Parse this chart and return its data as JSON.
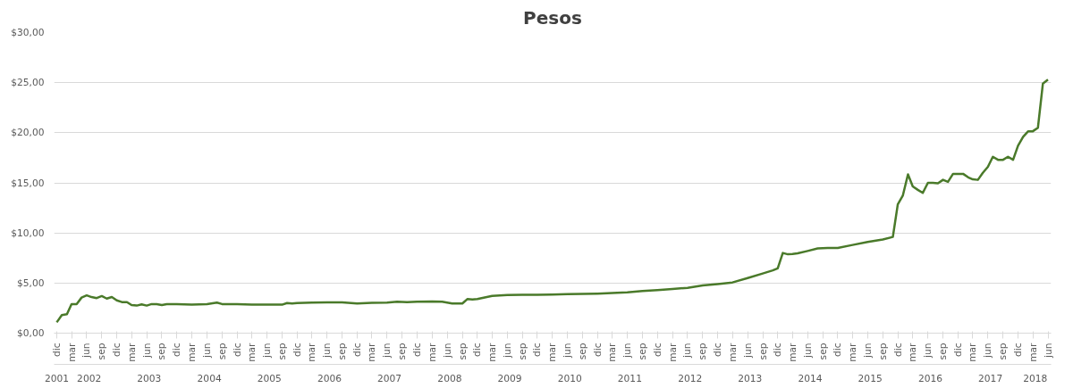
{
  "chart_data": {
    "type": "line",
    "title": "Pesos",
    "x": [
      "2001-12",
      "2002-01",
      "2002-02",
      "2002-03",
      "2002-04",
      "2002-05",
      "2002-06",
      "2002-07",
      "2002-08",
      "2002-09",
      "2002-10",
      "2002-11",
      "2002-12",
      "2003-01",
      "2003-02",
      "2003-03",
      "2003-04",
      "2003-05",
      "2003-06",
      "2003-07",
      "2003-08",
      "2003-09",
      "2003-10",
      "2003-12",
      "2004-03",
      "2004-06",
      "2004-08",
      "2004-09",
      "2004-12",
      "2005-03",
      "2005-06",
      "2005-09",
      "2005-10",
      "2005-11",
      "2005-12",
      "2006-03",
      "2006-06",
      "2006-09",
      "2006-12",
      "2007-03",
      "2007-06",
      "2007-08",
      "2007-10",
      "2007-12",
      "2008-03",
      "2008-05",
      "2008-07",
      "2008-09",
      "2008-10",
      "2008-11",
      "2008-12",
      "2009-03",
      "2009-06",
      "2009-09",
      "2009-12",
      "2010-03",
      "2010-06",
      "2010-09",
      "2010-12",
      "2011-03",
      "2011-06",
      "2011-09",
      "2011-12",
      "2012-03",
      "2012-06",
      "2012-09",
      "2012-12",
      "2013-03",
      "2013-06",
      "2013-09",
      "2013-11",
      "2013-12",
      "2014-01",
      "2014-02",
      "2014-03",
      "2014-04",
      "2014-06",
      "2014-08",
      "2014-10",
      "2014-12",
      "2015-03",
      "2015-06",
      "2015-09",
      "2015-11",
      "2015-12",
      "2016-01",
      "2016-02",
      "2016-03",
      "2016-04",
      "2016-05",
      "2016-06",
      "2016-07",
      "2016-08",
      "2016-09",
      "2016-10",
      "2016-11",
      "2016-12",
      "2017-01",
      "2017-02",
      "2017-03",
      "2017-04",
      "2017-05",
      "2017-06",
      "2017-07",
      "2017-08",
      "2017-09",
      "2017-10",
      "2017-11",
      "2017-12",
      "2018-01",
      "2018-02",
      "2018-03",
      "2018-04",
      "2018-05",
      "2018-06"
    ],
    "series": [
      {
        "color": "#4a7a2a",
        "values": [
          1.08,
          1.8,
          1.9,
          2.9,
          2.9,
          3.55,
          3.77,
          3.6,
          3.5,
          3.7,
          3.45,
          3.6,
          3.27,
          3.1,
          3.1,
          2.8,
          2.75,
          2.87,
          2.75,
          2.9,
          2.9,
          2.8,
          2.9,
          2.9,
          2.85,
          2.9,
          3.05,
          2.9,
          2.9,
          2.84,
          2.84,
          2.84,
          3.0,
          2.95,
          3.0,
          3.05,
          3.07,
          3.07,
          2.96,
          3.02,
          3.05,
          3.14,
          3.1,
          3.14,
          3.17,
          3.14,
          2.96,
          2.96,
          3.4,
          3.35,
          3.4,
          3.72,
          3.8,
          3.82,
          3.82,
          3.86,
          3.9,
          3.92,
          3.95,
          4.0,
          4.07,
          4.2,
          4.3,
          4.4,
          4.52,
          4.76,
          4.9,
          5.06,
          5.5,
          5.95,
          6.26,
          6.47,
          8.0,
          7.87,
          7.9,
          7.96,
          8.2,
          8.45,
          8.5,
          8.5,
          8.8,
          9.1,
          9.35,
          9.6,
          12.85,
          13.75,
          15.85,
          14.64,
          14.3,
          14.0,
          15.0,
          15.0,
          14.95,
          15.3,
          15.1,
          15.9,
          15.9,
          15.9,
          15.55,
          15.35,
          15.3,
          16.0,
          16.6,
          17.6,
          17.3,
          17.3,
          17.6,
          17.3,
          18.7,
          19.6,
          20.15,
          20.15,
          20.5,
          24.9,
          25.3
        ]
      }
    ],
    "xlim": [
      "2001-11-15",
      "2018-06-20"
    ],
    "xticks": [
      {
        "value": "2001-12",
        "label": "dic"
      },
      {
        "value": "2002-03",
        "label": "mar"
      },
      {
        "value": "2002-06",
        "label": "jun"
      },
      {
        "value": "2002-09",
        "label": "sep"
      },
      {
        "value": "2002-12",
        "label": "dic"
      },
      {
        "value": "2003-03",
        "label": "mar"
      },
      {
        "value": "2003-06",
        "label": "jun"
      },
      {
        "value": "2003-09",
        "label": "sep"
      },
      {
        "value": "2003-12",
        "label": "dic"
      },
      {
        "value": "2004-03",
        "label": "mar"
      },
      {
        "value": "2004-06",
        "label": "jun"
      },
      {
        "value": "2004-09",
        "label": "sep"
      },
      {
        "value": "2004-12",
        "label": "dic"
      },
      {
        "value": "2005-03",
        "label": "mar"
      },
      {
        "value": "2005-06",
        "label": "jun"
      },
      {
        "value": "2005-09",
        "label": "sep"
      },
      {
        "value": "2005-12",
        "label": "dic"
      },
      {
        "value": "2006-03",
        "label": "mar"
      },
      {
        "value": "2006-06",
        "label": "jun"
      },
      {
        "value": "2006-09",
        "label": "sep"
      },
      {
        "value": "2006-12",
        "label": "dic"
      },
      {
        "value": "2007-03",
        "label": "mar"
      },
      {
        "value": "2007-06",
        "label": "jun"
      },
      {
        "value": "2007-09",
        "label": "sep"
      },
      {
        "value": "2007-12",
        "label": "dic"
      },
      {
        "value": "2008-03",
        "label": "mar"
      },
      {
        "value": "2008-06",
        "label": "jun"
      },
      {
        "value": "2008-09",
        "label": "sep"
      },
      {
        "value": "2008-12",
        "label": "dic"
      },
      {
        "value": "2009-03",
        "label": "mar"
      },
      {
        "value": "2009-06",
        "label": "jun"
      },
      {
        "value": "2009-09",
        "label": "sep"
      },
      {
        "value": "2009-12",
        "label": "dic"
      },
      {
        "value": "2010-03",
        "label": "mar"
      },
      {
        "value": "2010-06",
        "label": "jun"
      },
      {
        "value": "2010-09",
        "label": "sep"
      },
      {
        "value": "2010-12",
        "label": "dic"
      },
      {
        "value": "2011-03",
        "label": "mar"
      },
      {
        "value": "2011-06",
        "label": "jun"
      },
      {
        "value": "2011-09",
        "label": "sep"
      },
      {
        "value": "2011-12",
        "label": "dic"
      },
      {
        "value": "2012-03",
        "label": "mar"
      },
      {
        "value": "2012-06",
        "label": "jun"
      },
      {
        "value": "2012-09",
        "label": "sep"
      },
      {
        "value": "2012-12",
        "label": "dic"
      },
      {
        "value": "2013-03",
        "label": "mar"
      },
      {
        "value": "2013-06",
        "label": "jun"
      },
      {
        "value": "2013-09",
        "label": "sep"
      },
      {
        "value": "2013-12",
        "label": "dic"
      },
      {
        "value": "2014-03",
        "label": "mar"
      },
      {
        "value": "2014-06",
        "label": "jun"
      },
      {
        "value": "2014-09",
        "label": "sep"
      },
      {
        "value": "2014-12",
        "label": "dic"
      },
      {
        "value": "2015-03",
        "label": "mar"
      },
      {
        "value": "2015-06",
        "label": "jun"
      },
      {
        "value": "2015-09",
        "label": "sep"
      },
      {
        "value": "2015-12",
        "label": "dic"
      },
      {
        "value": "2016-03",
        "label": "mar"
      },
      {
        "value": "2016-06",
        "label": "jun"
      },
      {
        "value": "2016-09",
        "label": "sep"
      },
      {
        "value": "2016-12",
        "label": "dic"
      },
      {
        "value": "2017-03",
        "label": "mar"
      },
      {
        "value": "2017-06",
        "label": "jun"
      },
      {
        "value": "2017-09",
        "label": "sep"
      },
      {
        "value": "2017-12",
        "label": "dic"
      },
      {
        "value": "2018-03",
        "label": "mar"
      },
      {
        "value": "2018-06",
        "label": "jun"
      }
    ],
    "x2lim": [
      "2001-11-15",
      "2018-06-20"
    ],
    "x2ticks": [
      {
        "value": "2001-12",
        "label": "2001"
      },
      {
        "value": "2002-06-16",
        "label": "2002"
      },
      {
        "value": "2003-06-16",
        "label": "2003"
      },
      {
        "value": "2004-06-16",
        "label": "2004"
      },
      {
        "value": "2005-06-16",
        "label": "2005"
      },
      {
        "value": "2006-06-16",
        "label": "2006"
      },
      {
        "value": "2007-06-16",
        "label": "2007"
      },
      {
        "value": "2008-06-16",
        "label": "2008"
      },
      {
        "value": "2009-06-16",
        "label": "2009"
      },
      {
        "value": "2010-06-16",
        "label": "2010"
      },
      {
        "value": "2011-06-16",
        "label": "2011"
      },
      {
        "value": "2012-06-16",
        "label": "2012"
      },
      {
        "value": "2013-06-16",
        "label": "2013"
      },
      {
        "value": "2014-06-16",
        "label": "2014"
      },
      {
        "value": "2015-06-16",
        "label": "2015"
      },
      {
        "value": "2016-06-16",
        "label": "2016"
      },
      {
        "value": "2017-06-16",
        "label": "2017"
      },
      {
        "value": "2018-03-16",
        "label": "2018"
      }
    ],
    "ylim": [
      0,
      30
    ],
    "yticks": [
      {
        "value": 0,
        "label": "$0,00"
      },
      {
        "value": 5,
        "label": "$5,00"
      },
      {
        "value": 10,
        "label": "$10,00"
      },
      {
        "value": 15,
        "label": "$15,00"
      },
      {
        "value": 20,
        "label": "$20,00"
      },
      {
        "value": 25,
        "label": "$25,00"
      },
      {
        "value": 30,
        "label": "$30,00"
      }
    ],
    "grid": "y",
    "marker": "none",
    "line_style": "solid"
  }
}
